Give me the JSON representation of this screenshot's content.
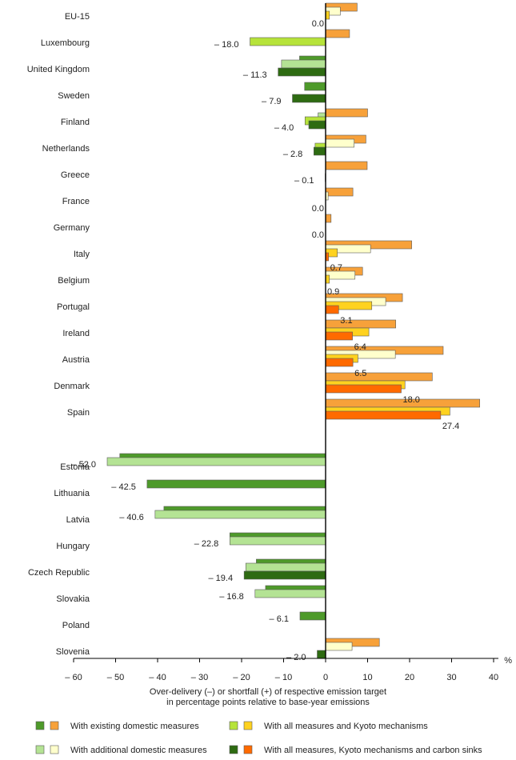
{
  "chart_data": {
    "type": "bar",
    "orientation": "horizontal",
    "x_unit": "%",
    "xlabel_lines": [
      "Over-delivery (–) or shortfall (+) of respective emission target",
      "in percentage points relative to base-year emissions"
    ],
    "xlim": [
      -60,
      40
    ],
    "x_ticks": [
      -60,
      -50,
      -40,
      -30,
      -20,
      -10,
      0,
      10,
      20,
      30,
      40
    ],
    "x_tick_labels": [
      "– 60",
      "– 50",
      "– 40",
      "– 30",
      "– 20",
      "– 10",
      "0",
      "10",
      "20",
      "30",
      "40"
    ],
    "legend": [
      {
        "key": "existing",
        "label": "With existing domestic measures",
        "swatches": [
          "#4e9a2a",
          "#f7a13a"
        ]
      },
      {
        "key": "kyoto",
        "label": "With all measures and Kyoto mechanisms",
        "swatches": [
          "#b6e33a",
          "#ffd21f"
        ]
      },
      {
        "key": "additional",
        "label": "With additional domestic measures",
        "swatches": [
          "#b4e394",
          "#ffffcc"
        ]
      },
      {
        "key": "sinks",
        "label": "With all measures, Kyoto mechanisms and carbon sinks",
        "swatches": [
          "#2e6b12",
          "#ff6a00"
        ]
      }
    ],
    "colors": {
      "negative": {
        "existing": "#4e9a2a",
        "additional": "#b4e394",
        "kyoto": "#b6e33a",
        "sinks": "#2e6b12"
      },
      "positive": {
        "existing": "#f7a13a",
        "additional": "#ffffcc",
        "kyoto": "#ffd21f",
        "sinks": "#ff6a00"
      }
    },
    "rows": [
      {
        "country": "EU-15",
        "label": "0.0",
        "values": {
          "existing": 7.5,
          "additional": 3.5,
          "kyoto": 0.9,
          "sinks": 0.0
        }
      },
      {
        "country": "Luxembourg",
        "label": "– 18.0",
        "values": {
          "existing": 5.7,
          "additional": null,
          "kyoto": -18.0,
          "sinks": null
        }
      },
      {
        "country": "United Kingdom",
        "label": "– 11.3",
        "values": {
          "existing": -6.2,
          "additional": -10.5,
          "kyoto": null,
          "sinks": -11.3
        }
      },
      {
        "country": "Sweden",
        "label": "– 7.9",
        "values": {
          "existing": -5.0,
          "additional": null,
          "kyoto": null,
          "sinks": -7.9
        }
      },
      {
        "country": "Finland",
        "label": "– 4.0",
        "values": {
          "existing": 10.0,
          "additional": -1.8,
          "kyoto": -4.9,
          "sinks": -4.0
        }
      },
      {
        "country": "Netherlands",
        "label": "– 2.8",
        "values": {
          "existing": 9.6,
          "additional": 6.8,
          "kyoto": -2.5,
          "sinks": -2.8
        }
      },
      {
        "country": "Greece",
        "label": "– 0.1",
        "values": {
          "existing": 9.9,
          "additional": null,
          "kyoto": null,
          "sinks": -0.1
        }
      },
      {
        "country": "France",
        "label": "0.0",
        "values": {
          "existing": 6.5,
          "additional": 0.6,
          "kyoto": null,
          "sinks": 0.0
        }
      },
      {
        "country": "Germany",
        "label": "0.0",
        "values": {
          "existing": 1.3,
          "additional": null,
          "kyoto": null,
          "sinks": 0.0
        }
      },
      {
        "country": "Italy",
        "label": "0.7",
        "values": {
          "existing": 20.5,
          "additional": 10.7,
          "kyoto": 2.8,
          "sinks": 0.7
        }
      },
      {
        "country": "Belgium",
        "label": "0.9",
        "values": {
          "existing": 8.8,
          "additional": 7.0,
          "kyoto": 0.9,
          "sinks": null
        }
      },
      {
        "country": "Portugal",
        "label": "3.1",
        "values": {
          "existing": 18.3,
          "additional": 14.3,
          "kyoto": 11.0,
          "sinks": 3.1
        }
      },
      {
        "country": "Ireland",
        "label": "6.4",
        "values": {
          "existing": 16.7,
          "additional": null,
          "kyoto": 10.3,
          "sinks": 6.4
        }
      },
      {
        "country": "Austria",
        "label": "6.5",
        "values": {
          "existing": 28.0,
          "additional": 16.6,
          "kyoto": 7.7,
          "sinks": 6.5
        }
      },
      {
        "country": "Denmark",
        "label": "18.0",
        "values": {
          "existing": 25.4,
          "additional": null,
          "kyoto": 18.9,
          "sinks": 18.0
        }
      },
      {
        "country": "Spain",
        "label": "27.4",
        "values": {
          "existing": 36.7,
          "additional": null,
          "kyoto": 29.6,
          "sinks": 27.4
        }
      },
      {
        "country": "Estonia",
        "label": "– 52.0",
        "values": {
          "existing": -49.0,
          "additional": -52.0,
          "kyoto": null,
          "sinks": null
        }
      },
      {
        "country": "Lithuania",
        "label": "– 42.5",
        "values": {
          "existing": -42.5,
          "additional": null,
          "kyoto": null,
          "sinks": null
        }
      },
      {
        "country": "Latvia",
        "label": "– 40.6",
        "values": {
          "existing": -38.5,
          "additional": -40.6,
          "kyoto": null,
          "sinks": null
        }
      },
      {
        "country": "Hungary",
        "label": "– 22.8",
        "values": {
          "existing": -22.8,
          "additional": -22.8,
          "kyoto": null,
          "sinks": null
        }
      },
      {
        "country": "Czech Republic",
        "label": "– 19.4",
        "values": {
          "existing": -16.5,
          "additional": -19.0,
          "kyoto": null,
          "sinks": -19.4
        }
      },
      {
        "country": "Slovakia",
        "label": "– 16.8",
        "values": {
          "existing": -14.3,
          "additional": -16.8,
          "kyoto": null,
          "sinks": null
        }
      },
      {
        "country": "Poland",
        "label": "– 6.1",
        "values": {
          "existing": -6.1,
          "additional": null,
          "kyoto": null,
          "sinks": null
        }
      },
      {
        "country": "Slovenia",
        "label": "– 2.0",
        "values": {
          "existing": 12.8,
          "additional": 6.3,
          "kyoto": null,
          "sinks": -2.0
        }
      }
    ]
  }
}
